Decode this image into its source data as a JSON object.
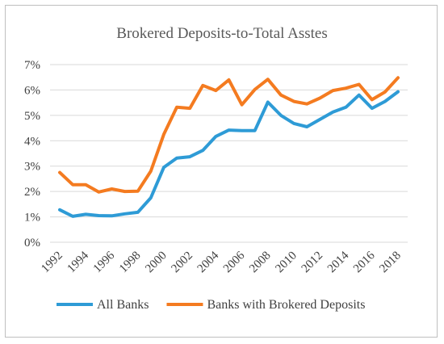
{
  "chart_data": {
    "type": "line",
    "title": "Brokered Deposits-to-Total Asstes",
    "xlabel": "",
    "ylabel": "",
    "x": [
      1992,
      1993,
      1994,
      1995,
      1996,
      1997,
      1998,
      1999,
      2000,
      2001,
      2002,
      2003,
      2004,
      2005,
      2006,
      2007,
      2008,
      2009,
      2010,
      2011,
      2012,
      2013,
      2014,
      2015,
      2016,
      2017,
      2018
    ],
    "x_tick_labels": [
      "1992",
      "1994",
      "1996",
      "1998",
      "2000",
      "2002",
      "2004",
      "2006",
      "2008",
      "2010",
      "2012",
      "2014",
      "2016",
      "2018"
    ],
    "y_tick_labels": [
      "0%",
      "1%",
      "2%",
      "3%",
      "4%",
      "5%",
      "6%",
      "7%"
    ],
    "ylim": [
      0,
      7
    ],
    "grid": "horizontal",
    "legend_position": "bottom",
    "series": [
      {
        "name": "All Banks",
        "color": "#2e9bd6",
        "values": [
          1.28,
          1.02,
          1.1,
          1.05,
          1.04,
          1.12,
          1.18,
          1.75,
          2.95,
          3.32,
          3.37,
          3.62,
          4.17,
          4.42,
          4.4,
          4.4,
          5.52,
          5.0,
          4.68,
          4.55,
          4.84,
          5.13,
          5.32,
          5.8,
          5.28,
          5.55,
          5.93
        ]
      },
      {
        "name": "Banks with Brokered Deposits",
        "color": "#f47b20",
        "values": [
          2.75,
          2.27,
          2.27,
          1.98,
          2.1,
          2.0,
          2.01,
          2.8,
          4.25,
          5.32,
          5.28,
          6.18,
          5.98,
          6.4,
          5.42,
          6.02,
          6.42,
          5.8,
          5.55,
          5.45,
          5.68,
          5.98,
          6.07,
          6.22,
          5.62,
          5.92,
          6.48
        ]
      }
    ]
  }
}
